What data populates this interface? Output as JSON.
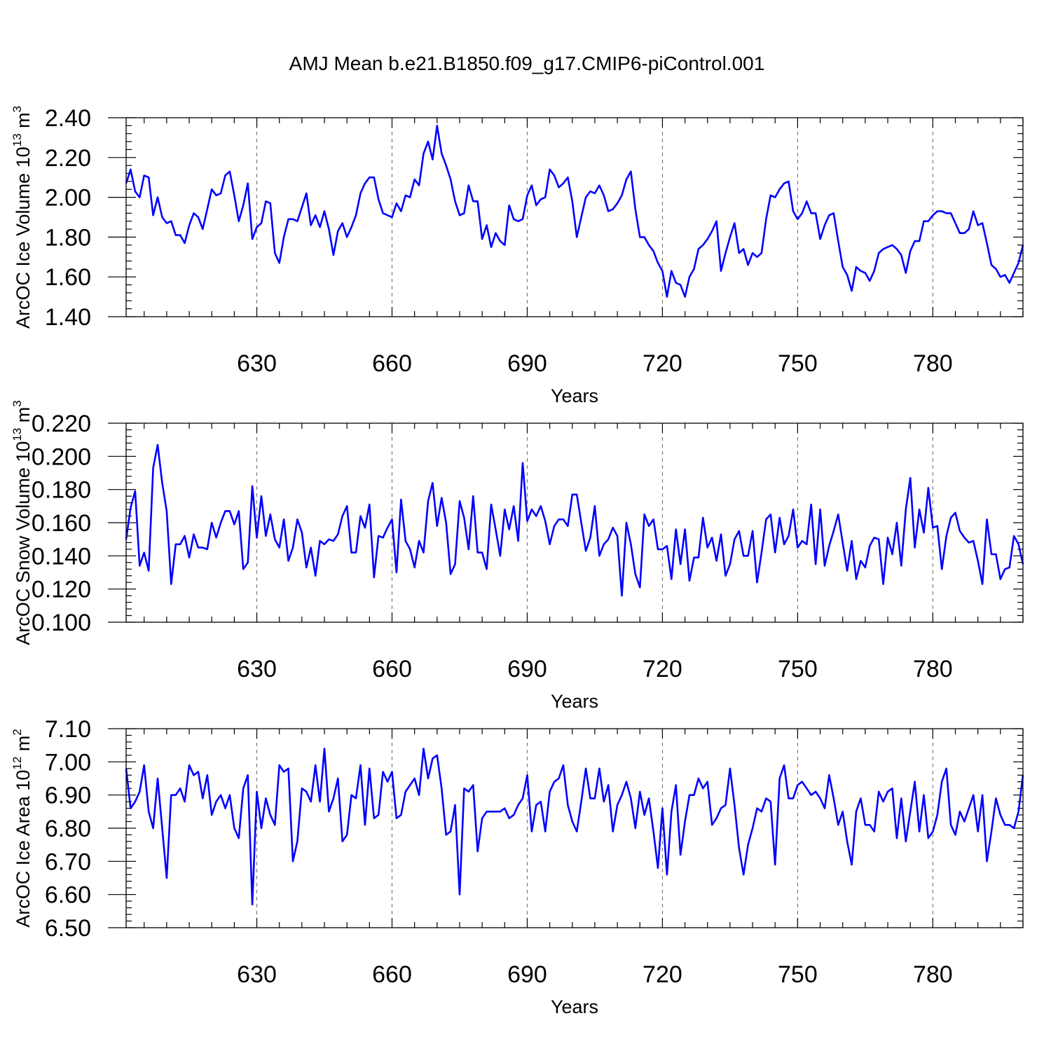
{
  "title": "AMJ Mean b.e21.B1850.f09_g17.CMIP6-piControl.001",
  "colors": {
    "line": "#0000ff",
    "axes": "#000000",
    "grid": "#666666"
  },
  "chart_data": [
    {
      "type": "line",
      "xlabel": "Years",
      "ylabel": "ArcOC Ice Volume 10",
      "ylabel_exp": "13",
      "ylabel_unit": " m",
      "ylabel_unit_exp": "3",
      "xlim": [
        601,
        800
      ],
      "ylim": [
        1.4,
        2.4
      ],
      "yticks": [
        "1.40",
        "1.60",
        "1.80",
        "2.00",
        "2.20",
        "2.40"
      ],
      "ytick_values": [
        1.4,
        1.6,
        1.8,
        2.0,
        2.2,
        2.4
      ],
      "xticks": [
        "630",
        "660",
        "690",
        "720",
        "750",
        "780"
      ],
      "xtick_values": [
        630,
        660,
        690,
        720,
        750,
        780
      ],
      "grid": "vertical dashed at major x ticks",
      "x_start": 601,
      "series": [
        {
          "values": [
            2.07,
            2.14,
            2.03,
            2.0,
            2.11,
            2.1,
            1.91,
            2.0,
            1.9,
            1.87,
            1.88,
            1.81,
            1.81,
            1.77,
            1.86,
            1.92,
            1.9,
            1.84,
            1.94,
            2.04,
            2.01,
            2.02,
            2.11,
            2.13,
            2.01,
            1.88,
            1.96,
            2.07,
            1.79,
            1.85,
            1.87,
            1.98,
            1.97,
            1.72,
            1.67,
            1.8,
            1.89,
            1.89,
            1.88,
            1.95,
            2.02,
            1.86,
            1.91,
            1.85,
            1.93,
            1.84,
            1.71,
            1.83,
            1.87,
            1.8,
            1.85,
            1.91,
            2.02,
            2.07,
            2.1,
            2.1,
            1.99,
            1.92,
            1.91,
            1.9,
            1.97,
            1.93,
            2.01,
            2.0,
            2.09,
            2.06,
            2.22,
            2.28,
            2.19,
            2.36,
            2.22,
            2.16,
            2.09,
            1.98,
            1.91,
            1.92,
            2.06,
            1.98,
            1.98,
            1.79,
            1.86,
            1.75,
            1.82,
            1.78,
            1.76,
            1.96,
            1.89,
            1.88,
            1.89,
            2.01,
            2.06,
            1.96,
            1.99,
            2.0,
            2.14,
            2.11,
            2.05,
            2.07,
            2.1,
            1.98,
            1.8,
            1.9,
            2.0,
            2.03,
            2.02,
            2.06,
            2.01,
            1.93,
            1.94,
            1.97,
            2.01,
            2.09,
            2.13,
            1.94,
            1.8,
            1.8,
            1.76,
            1.73,
            1.67,
            1.63,
            1.5,
            1.63,
            1.57,
            1.56,
            1.5,
            1.6,
            1.64,
            1.74,
            1.76,
            1.79,
            1.83,
            1.88,
            1.63,
            1.72,
            1.8,
            1.87,
            1.72,
            1.74,
            1.66,
            1.72,
            1.7,
            1.72,
            1.89,
            2.01,
            2.0,
            2.04,
            2.07,
            2.08,
            1.93,
            1.89,
            1.92,
            1.98,
            1.92,
            1.92,
            1.79,
            1.86,
            1.91,
            1.92,
            1.78,
            1.65,
            1.61,
            1.53,
            1.65,
            1.63,
            1.62,
            1.58,
            1.63,
            1.72,
            1.74,
            1.75,
            1.76,
            1.74,
            1.71,
            1.62,
            1.73,
            1.78,
            1.78,
            1.88,
            1.88,
            1.91,
            1.93,
            1.93,
            1.92,
            1.92,
            1.87,
            1.82,
            1.82,
            1.84,
            1.93,
            1.86,
            1.87,
            1.77,
            1.66,
            1.64,
            1.6,
            1.61,
            1.57,
            1.62,
            1.67,
            1.76
          ]
        }
      ]
    },
    {
      "type": "line",
      "xlabel": "Years",
      "ylabel": "ArcOC Snow Volume 10",
      "ylabel_exp": "13",
      "ylabel_unit": " m",
      "ylabel_unit_exp": "3",
      "xlim": [
        601,
        800
      ],
      "ylim": [
        0.1,
        0.22
      ],
      "yticks": [
        "0.100",
        "0.120",
        "0.140",
        "0.160",
        "0.180",
        "0.200",
        "0.220"
      ],
      "ytick_values": [
        0.1,
        0.12,
        0.14,
        0.16,
        0.18,
        0.2,
        0.22
      ],
      "xticks": [
        "630",
        "660",
        "690",
        "720",
        "750",
        "780"
      ],
      "xtick_values": [
        630,
        660,
        690,
        720,
        750,
        780
      ],
      "grid": "vertical dashed at major x ticks",
      "x_start": 601,
      "series": [
        {
          "values": [
            0.15,
            0.169,
            0.179,
            0.134,
            0.142,
            0.131,
            0.193,
            0.207,
            0.184,
            0.167,
            0.123,
            0.147,
            0.147,
            0.152,
            0.139,
            0.153,
            0.145,
            0.145,
            0.144,
            0.16,
            0.151,
            0.16,
            0.167,
            0.167,
            0.159,
            0.167,
            0.132,
            0.136,
            0.182,
            0.151,
            0.176,
            0.152,
            0.165,
            0.15,
            0.145,
            0.162,
            0.137,
            0.145,
            0.162,
            0.154,
            0.133,
            0.145,
            0.128,
            0.149,
            0.147,
            0.15,
            0.149,
            0.153,
            0.164,
            0.17,
            0.142,
            0.142,
            0.164,
            0.157,
            0.171,
            0.127,
            0.152,
            0.151,
            0.157,
            0.162,
            0.13,
            0.174,
            0.149,
            0.144,
            0.133,
            0.149,
            0.142,
            0.173,
            0.184,
            0.158,
            0.175,
            0.16,
            0.129,
            0.135,
            0.173,
            0.163,
            0.144,
            0.176,
            0.142,
            0.142,
            0.132,
            0.171,
            0.156,
            0.14,
            0.168,
            0.156,
            0.17,
            0.149,
            0.196,
            0.161,
            0.168,
            0.164,
            0.17,
            0.161,
            0.147,
            0.158,
            0.162,
            0.162,
            0.158,
            0.177,
            0.177,
            0.16,
            0.143,
            0.151,
            0.17,
            0.14,
            0.147,
            0.15,
            0.157,
            0.152,
            0.116,
            0.16,
            0.147,
            0.129,
            0.121,
            0.165,
            0.158,
            0.162,
            0.144,
            0.144,
            0.146,
            0.126,
            0.156,
            0.135,
            0.156,
            0.125,
            0.139,
            0.139,
            0.163,
            0.145,
            0.151,
            0.137,
            0.153,
            0.128,
            0.135,
            0.15,
            0.155,
            0.14,
            0.14,
            0.155,
            0.124,
            0.142,
            0.162,
            0.165,
            0.142,
            0.163,
            0.147,
            0.152,
            0.168,
            0.145,
            0.149,
            0.147,
            0.171,
            0.135,
            0.168,
            0.134,
            0.146,
            0.155,
            0.165,
            0.148,
            0.131,
            0.149,
            0.126,
            0.137,
            0.133,
            0.146,
            0.151,
            0.15,
            0.123,
            0.151,
            0.141,
            0.16,
            0.134,
            0.168,
            0.187,
            0.145,
            0.168,
            0.154,
            0.181,
            0.157,
            0.158,
            0.132,
            0.152,
            0.163,
            0.166,
            0.155,
            0.151,
            0.148,
            0.149,
            0.137,
            0.123,
            0.162,
            0.141,
            0.141,
            0.126,
            0.132,
            0.133,
            0.152,
            0.147,
            0.135
          ]
        }
      ]
    },
    {
      "type": "line",
      "xlabel": "Years",
      "ylabel": "ArcOC Ice Area 10",
      "ylabel_exp": "12",
      "ylabel_unit": " m",
      "ylabel_unit_exp": "2",
      "xlim": [
        601,
        800
      ],
      "ylim": [
        6.5,
        7.1
      ],
      "yticks": [
        "6.50",
        "6.60",
        "6.70",
        "6.80",
        "6.90",
        "7.00",
        "7.10"
      ],
      "ytick_values": [
        6.5,
        6.6,
        6.7,
        6.8,
        6.9,
        7.0,
        7.1
      ],
      "xticks": [
        "630",
        "660",
        "690",
        "720",
        "750",
        "780"
      ],
      "xtick_values": [
        630,
        660,
        690,
        720,
        750,
        780
      ],
      "grid": "vertical dashed at major x ticks",
      "x_start": 601,
      "series": [
        {
          "values": [
            6.98,
            6.86,
            6.88,
            6.91,
            6.99,
            6.85,
            6.8,
            6.95,
            6.8,
            6.65,
            6.9,
            6.9,
            6.92,
            6.88,
            6.99,
            6.96,
            6.97,
            6.89,
            6.96,
            6.84,
            6.88,
            6.9,
            6.86,
            6.9,
            6.8,
            6.77,
            6.92,
            6.96,
            6.57,
            6.91,
            6.8,
            6.89,
            6.84,
            6.81,
            6.99,
            6.97,
            6.98,
            6.7,
            6.76,
            6.92,
            6.91,
            6.88,
            6.99,
            6.88,
            7.04,
            6.85,
            6.89,
            6.95,
            6.76,
            6.78,
            6.9,
            6.89,
            6.99,
            6.81,
            6.98,
            6.83,
            6.84,
            6.97,
            6.94,
            6.97,
            6.83,
            6.84,
            6.91,
            6.93,
            6.95,
            6.9,
            7.04,
            6.95,
            7.01,
            7.02,
            6.92,
            6.78,
            6.79,
            6.87,
            6.6,
            6.92,
            6.91,
            6.93,
            6.73,
            6.83,
            6.85,
            6.85,
            6.85,
            6.85,
            6.86,
            6.83,
            6.84,
            6.87,
            6.89,
            6.96,
            6.79,
            6.87,
            6.88,
            6.79,
            6.91,
            6.94,
            6.95,
            6.99,
            6.87,
            6.82,
            6.79,
            6.88,
            6.98,
            6.89,
            6.89,
            6.98,
            6.88,
            6.93,
            6.79,
            6.87,
            6.9,
            6.94,
            6.89,
            6.8,
            6.91,
            6.84,
            6.89,
            6.79,
            6.68,
            6.86,
            6.66,
            6.85,
            6.93,
            6.72,
            6.82,
            6.9,
            6.9,
            6.95,
            6.92,
            6.94,
            6.81,
            6.83,
            6.86,
            6.87,
            6.98,
            6.87,
            6.74,
            6.66,
            6.75,
            6.8,
            6.86,
            6.85,
            6.89,
            6.88,
            6.69,
            6.95,
            6.99,
            6.89,
            6.89,
            6.93,
            6.94,
            6.92,
            6.9,
            6.91,
            6.89,
            6.86,
            6.96,
            6.89,
            6.81,
            6.85,
            6.76,
            6.69,
            6.85,
            6.89,
            6.81,
            6.81,
            6.79,
            6.91,
            6.88,
            6.91,
            6.92,
            6.77,
            6.89,
            6.76,
            6.85,
            6.94,
            6.79,
            6.9,
            6.77,
            6.79,
            6.84,
            6.94,
            6.98,
            6.81,
            6.78,
            6.85,
            6.82,
            6.86,
            6.9,
            6.79,
            6.9,
            6.7,
            6.79,
            6.89,
            6.84,
            6.81,
            6.81,
            6.8,
            6.85,
            6.96
          ]
        }
      ]
    }
  ]
}
